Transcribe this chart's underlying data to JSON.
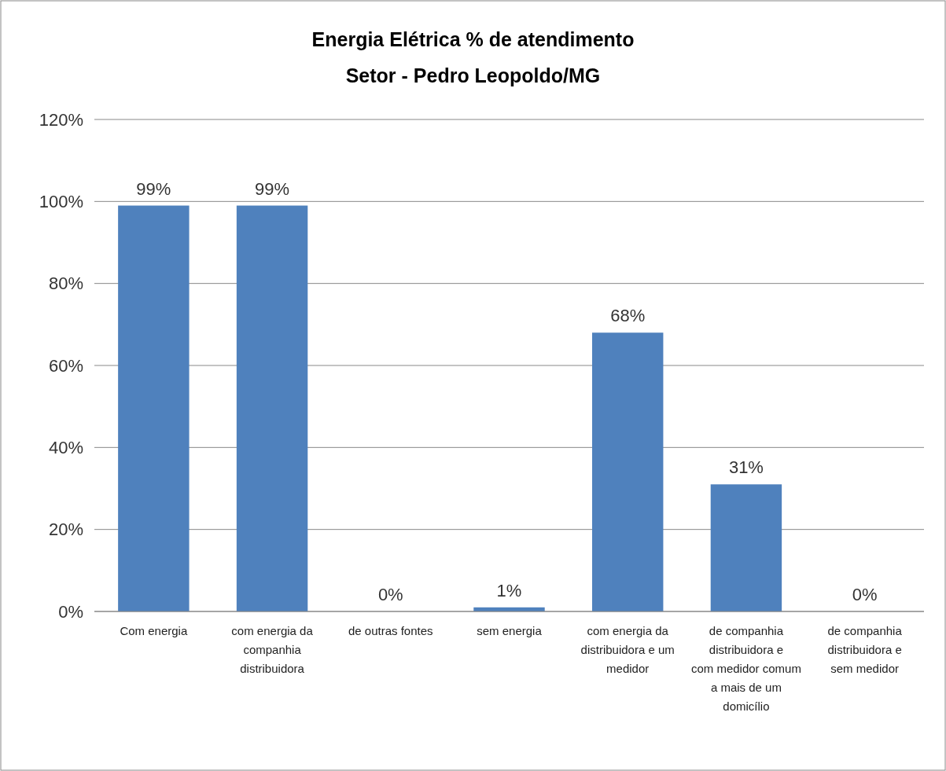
{
  "chart_data": {
    "type": "bar",
    "title": "Energia Elétrica % de atendimento",
    "subtitle": "Setor - Pedro Leopoldo/MG",
    "categories": [
      "Com energia",
      "com energia da companhia distribuidora",
      "de outras fontes",
      "sem energia",
      "com energia da distribuidora e um medidor",
      "de companhia distribuidora e com medidor comum a mais de um domicílio",
      "de companhia distribuidora e sem medidor"
    ],
    "values": [
      99,
      99,
      0,
      1,
      68,
      31,
      0
    ],
    "value_labels": [
      "99%",
      "99%",
      "0%",
      "1%",
      "68%",
      "31%",
      "0%"
    ],
    "color": "#4f81bd",
    "ylim": [
      0,
      120
    ],
    "yticks": [
      {
        "value": 0,
        "label": "0%"
      },
      {
        "value": 20,
        "label": "20%"
      },
      {
        "value": 40,
        "label": "40%"
      },
      {
        "value": 60,
        "label": "60%"
      },
      {
        "value": 80,
        "label": "80%"
      },
      {
        "value": 100,
        "label": "100%"
      },
      {
        "value": 120,
        "label": "120%"
      }
    ],
    "grid": "y"
  }
}
